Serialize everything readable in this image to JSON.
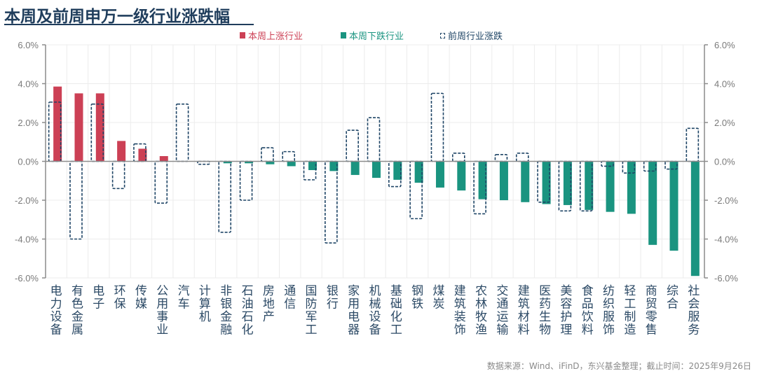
{
  "page": {
    "title": "本周及前周申万一级行业涨跌幅",
    "source": "数据来源：Wind、iFinD，东兴基金整理；截止时间：2025年9月26日"
  },
  "colors": {
    "up": "#cc4055",
    "down": "#1a9480",
    "prev_outline": "#1f4566",
    "title": "#1f3d5c",
    "axis": "#8c8c8c",
    "grid": "#ececec",
    "tick_label": "#7a7a7a",
    "category_label": "#2c4a66"
  },
  "chart_data": {
    "type": "bar",
    "title": "本周及前周申万一级行业涨跌幅",
    "xlabel": "",
    "ylabel": "",
    "ylim": [
      -6.0,
      6.0
    ],
    "yticks": [
      "6.0%",
      "4.0%",
      "2.0%",
      "0.0%",
      "-2.0%",
      "-4.0%",
      "-6.0%"
    ],
    "ytick_values": [
      6,
      4,
      2,
      0,
      -2,
      -4,
      -6
    ],
    "y_unit": "%",
    "grid": true,
    "dual_y_axis_mirrored": true,
    "legend_position": "top-center",
    "legend": [
      {
        "key": "up",
        "label": "本周上涨行业"
      },
      {
        "key": "down",
        "label": "本周下跌行业"
      },
      {
        "key": "prev",
        "label": "前周行业涨跌"
      }
    ],
    "categories": [
      "电力设备",
      "有色金属",
      "电子",
      "环保",
      "传媒",
      "公用事业",
      "汽车",
      "计算机",
      "非银金融",
      "石油石化",
      "房地产",
      "通信",
      "国防军工",
      "银行",
      "家用电器",
      "机械设备",
      "基础化工",
      "钢铁",
      "煤炭",
      "建筑装饰",
      "农林牧渔",
      "交通运输",
      "建筑材料",
      "医药生物",
      "美容护理",
      "食品饮料",
      "纺织服饰",
      "轻工制造",
      "商贸零售",
      "综合",
      "社会服务"
    ],
    "series": [
      {
        "name": "本周涨跌",
        "style": "filled (red if ≥0, green if <0)",
        "values": [
          3.85,
          3.5,
          3.5,
          1.05,
          0.65,
          0.27,
          0.0,
          0.0,
          -0.1,
          -0.1,
          -0.15,
          -0.25,
          -0.45,
          -0.5,
          -0.7,
          -0.85,
          -0.95,
          -1.1,
          -1.35,
          -1.5,
          -1.95,
          -2.0,
          -2.1,
          -2.2,
          -2.25,
          -2.5,
          -2.6,
          -2.7,
          -4.3,
          -4.6,
          -5.9
        ]
      },
      {
        "name": "前周行业涨跌",
        "style": "dashed outline",
        "values": [
          3.05,
          -4.0,
          2.95,
          -1.4,
          0.9,
          -2.15,
          2.95,
          -0.15,
          -3.65,
          -2.0,
          0.7,
          0.5,
          -0.95,
          -4.2,
          1.6,
          2.25,
          -1.3,
          -2.95,
          3.5,
          0.42,
          -2.7,
          0.35,
          0.42,
          -2.1,
          -2.55,
          -2.55,
          -0.25,
          -0.6,
          -0.5,
          -0.4,
          1.7
        ]
      }
    ]
  }
}
